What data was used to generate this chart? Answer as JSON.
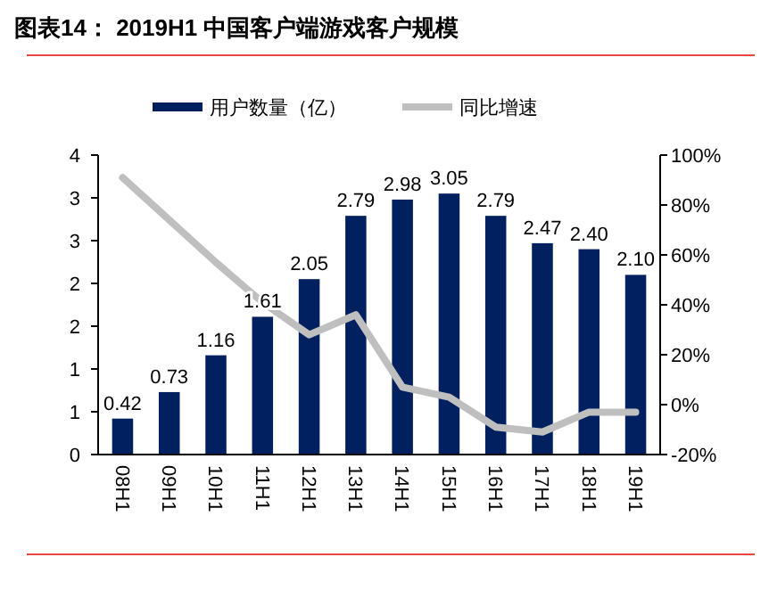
{
  "chart_data": {
    "type": "bar",
    "title": "图表14：  2019H1 中国客户端游戏客户规模",
    "categories": [
      "08H1",
      "09H1",
      "10H1",
      "11H1",
      "12H1",
      "13H1",
      "14H1",
      "15H1",
      "16H1",
      "17H1",
      "18H1",
      "19H1"
    ],
    "series": [
      {
        "name": "用户数量（亿）",
        "color": "#002060",
        "values": [
          0.42,
          0.73,
          1.16,
          1.61,
          2.05,
          2.79,
          2.98,
          3.05,
          2.79,
          2.47,
          2.4,
          2.1
        ],
        "value_labels": [
          "0.42",
          "0.73",
          "1.16",
          "1.61",
          "2.05",
          "2.79",
          "2.98",
          "3.05",
          "2.79",
          "2.47",
          "2.40",
          "2.10"
        ]
      },
      {
        "name": "同比增速",
        "type": "line",
        "axis": "y2",
        "color": "#bfbfbf",
        "values": [
          91,
          74,
          57,
          41,
          28,
          36,
          7,
          3,
          -9,
          -11,
          -3,
          -3
        ]
      }
    ],
    "ylim": [
      0,
      3.5
    ],
    "yticks": [
      0,
      {
        "value": 0.5,
        "label": "1"
      },
      1,
      {
        "value": 1.5,
        "label": "2"
      },
      2,
      {
        "value": 2.5,
        "label": "3"
      },
      3,
      {
        "value": 3.5,
        "label": "4"
      }
    ],
    "y2lim": [
      -20,
      100
    ],
    "y2ticks": [
      {
        "value": -20,
        "label": "-20%"
      },
      {
        "value": 0,
        "label": "0%"
      },
      {
        "value": 20,
        "label": "20%"
      },
      {
        "value": 40,
        "label": "40%"
      },
      {
        "value": 60,
        "label": "60%"
      },
      {
        "value": 80,
        "label": "80%"
      },
      {
        "value": 100,
        "label": "100%"
      }
    ],
    "legend": "top",
    "grid": false,
    "marker": "none"
  }
}
